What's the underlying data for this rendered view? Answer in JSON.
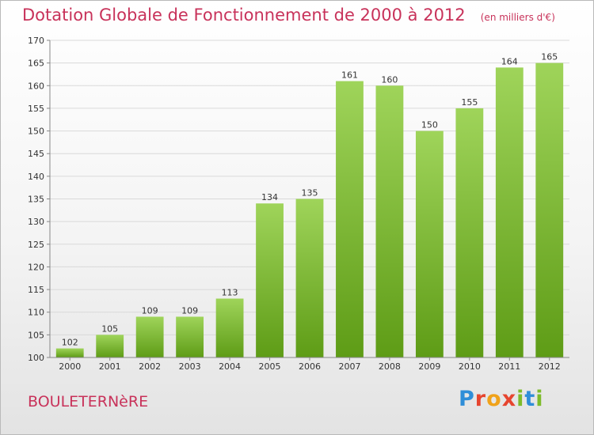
{
  "header": {
    "title": "Dotation Globale de Fonctionnement de 2000 à 2012",
    "subtitle": "(en milliers d'€)"
  },
  "footer": {
    "commune": "BOULETERNèRE",
    "logo": "Proxiti"
  },
  "chart_data": {
    "type": "bar",
    "title": "Dotation Globale de Fonctionnement de 2000 à 2012",
    "subtitle": "(en milliers d'€)",
    "xlabel": "",
    "ylabel": "",
    "categories": [
      "2000",
      "2001",
      "2002",
      "2003",
      "2004",
      "2005",
      "2006",
      "2007",
      "2008",
      "2009",
      "2010",
      "2011",
      "2012"
    ],
    "values": [
      102,
      105,
      109,
      109,
      113,
      134,
      135,
      161,
      160,
      150,
      155,
      164,
      165
    ],
    "ylim": [
      100,
      170
    ],
    "yticks": [
      100,
      105,
      110,
      115,
      120,
      125,
      130,
      135,
      140,
      145,
      150,
      155,
      160,
      165,
      170
    ],
    "grid": true,
    "legend": "none",
    "colors": {
      "bar_top": "#9fd45a",
      "bar_bottom": "#5e9c16",
      "grid": "#d9d9d9",
      "axis": "#888888",
      "text": "#333333",
      "title": "#c8325a"
    }
  }
}
